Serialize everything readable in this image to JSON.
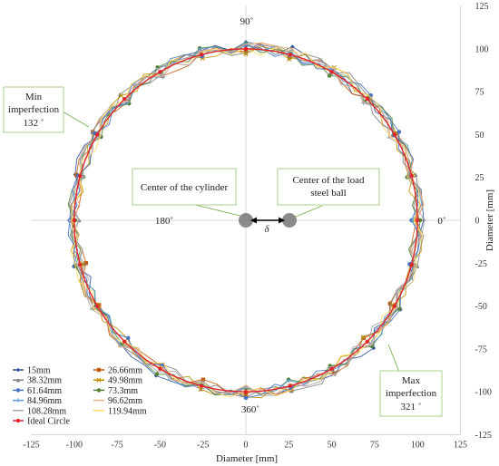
{
  "chart_data": {
    "type": "line",
    "xlabel": "Diameter [mm]",
    "ylabel": "Diameter [mm]",
    "xlim": [
      -125,
      125
    ],
    "ylim": [
      -125,
      125
    ],
    "x_ticks": [
      -125,
      -100,
      -75,
      -50,
      -25,
      0,
      25,
      50,
      75,
      100,
      125
    ],
    "y_ticks": [
      -125,
      -100,
      -75,
      -50,
      -25,
      0,
      25,
      50,
      75,
      100,
      125
    ],
    "angle_labels": {
      "a90": "90˚",
      "a180": "180˚",
      "a0": "0˚",
      "a360": "360˚"
    },
    "delta_symbol": "δ",
    "annotations": {
      "min_imperfection": {
        "line1": "Min",
        "line2": "imperfection",
        "line3": "132 ˚"
      },
      "max_imperfection": {
        "line1": "Max",
        "line2": "imperfection",
        "line3": "321 ˚"
      },
      "cylinder_center": "Center of the cylinder",
      "ball_center": {
        "line1": "Center of the load",
        "line2": "steel ball"
      }
    },
    "ideal_radius": 100,
    "series": [
      {
        "name": "15mm",
        "color": "#2f5597",
        "marker": "diamond",
        "amp": [
          4,
          3,
          3,
          -3,
          3,
          2,
          -2,
          3,
          4,
          2,
          -3,
          2,
          3,
          -2,
          3,
          5,
          -3,
          2,
          3,
          -2,
          3,
          2,
          3,
          2
        ],
        "phase": 0
      },
      {
        "name": "26.66mm",
        "color": "#c55a11",
        "marker": "square",
        "amp": [
          -3,
          -2,
          3,
          2,
          -3,
          -2,
          3,
          2,
          -2,
          3,
          2,
          -3,
          -2,
          2,
          3,
          -2,
          -3,
          2,
          3,
          -2,
          -2,
          3,
          2,
          -3
        ],
        "phase": 1
      },
      {
        "name": "38.32mm",
        "color": "#7f7f7f",
        "marker": "triangle",
        "amp": [
          2,
          3,
          -2,
          -3,
          2,
          3,
          -2,
          2,
          3,
          -2,
          -3,
          2,
          3,
          5,
          -2,
          3,
          2,
          -3,
          2,
          3,
          -2,
          -3,
          2,
          3
        ],
        "phase": 2
      },
      {
        "name": "49.98mm",
        "color": "#bf9000",
        "marker": "x",
        "amp": [
          -2,
          3,
          2,
          -2,
          3,
          -3,
          2,
          3,
          -2,
          2,
          3,
          -2,
          2,
          -3,
          3,
          2,
          -2,
          3,
          -3,
          2,
          3,
          -2,
          2,
          -2
        ],
        "phase": 3
      },
      {
        "name": "61.64mm",
        "color": "#4472c4",
        "marker": "star",
        "amp": [
          3,
          -2,
          2,
          3,
          -3,
          2,
          3,
          -2,
          2,
          -2,
          3,
          2,
          -3,
          2,
          3,
          -2,
          2,
          3,
          -2,
          3,
          -2,
          2,
          3,
          -2
        ],
        "phase": 4
      },
      {
        "name": "73.3mm",
        "color": "#548235",
        "marker": "circle",
        "amp": [
          -2,
          2,
          3,
          -3,
          2,
          3,
          -2,
          2,
          -3,
          3,
          2,
          -2,
          3,
          2,
          -3,
          2,
          3,
          -2,
          2,
          -3,
          3,
          2,
          -2,
          3
        ],
        "phase": 5
      },
      {
        "name": "84.96mm",
        "color": "#5b9bd5",
        "marker": "plus",
        "amp": [
          2,
          -3,
          2,
          3,
          -2,
          2,
          -3,
          3,
          2,
          -2,
          2,
          3,
          -2,
          3,
          2,
          -3,
          2,
          -2,
          3,
          2,
          -3,
          2,
          3,
          -2
        ],
        "phase": 6
      },
      {
        "name": "96.62mm",
        "color": "#f4b183",
        "marker": "dash",
        "amp": [
          3,
          2,
          -2,
          2,
          3,
          -3,
          2,
          -2,
          3,
          2,
          -2,
          3,
          2,
          -3,
          2,
          3,
          -2,
          2,
          -3,
          3,
          2,
          -2,
          3,
          2
        ],
        "phase": 7
      },
      {
        "name": "108.28mm",
        "color": "#a5a5a5",
        "marker": "dash",
        "amp": [
          -3,
          2,
          3,
          -2,
          2,
          3,
          -3,
          2,
          3,
          -2,
          3,
          -2,
          2,
          3,
          -3,
          2,
          3,
          -2,
          2,
          3,
          -2,
          3,
          -3,
          2
        ],
        "phase": 8
      },
      {
        "name": "119.94mm",
        "color": "#ffd966",
        "marker": "none",
        "amp": [
          2,
          3,
          -3,
          2,
          -2,
          3,
          2,
          -2,
          3,
          -3,
          2,
          3,
          -2,
          2,
          3,
          -2,
          -3,
          3,
          2,
          -2,
          3,
          2,
          -3,
          3
        ],
        "phase": 9
      },
      {
        "name": "Ideal Circle",
        "color": "#e0262b",
        "marker": "circle",
        "amp": null,
        "phase": 0
      }
    ]
  }
}
